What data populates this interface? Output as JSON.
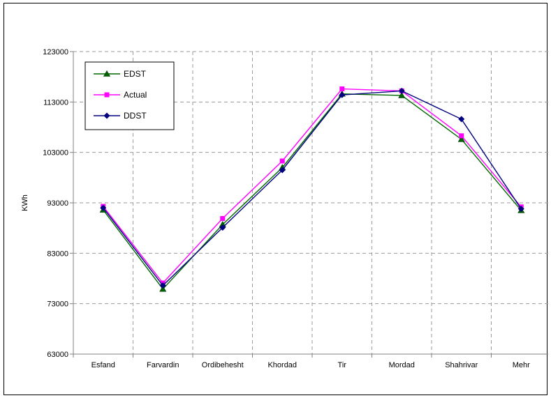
{
  "chart_data": {
    "type": "line",
    "title": "",
    "xlabel": "",
    "ylabel": "KWh",
    "categories": [
      "Esfand",
      "Farvardin",
      "Ordibehesht",
      "Khordad",
      "Tir",
      "Mordad",
      "Shahrivar",
      "Mehr"
    ],
    "ylim": [
      63000,
      123000
    ],
    "yticks": [
      63000,
      73000,
      83000,
      93000,
      103000,
      113000,
      123000
    ],
    "grid": "dashed vertical and horizontal",
    "legend_position": "top-left",
    "series": [
      {
        "name": "EDST",
        "color": "#006600",
        "marker": "triangle",
        "values": [
          91600,
          75900,
          88700,
          100000,
          114600,
          114300,
          105600,
          91500
        ]
      },
      {
        "name": "Actual",
        "color": "#ff00ff",
        "marker": "square",
        "values": [
          92300,
          77100,
          89900,
          101300,
          115600,
          115200,
          106300,
          92200
        ]
      },
      {
        "name": "DDST",
        "color": "#000080",
        "marker": "diamond",
        "values": [
          92000,
          76600,
          88100,
          99500,
          114400,
          115200,
          109600,
          91800
        ]
      }
    ]
  }
}
